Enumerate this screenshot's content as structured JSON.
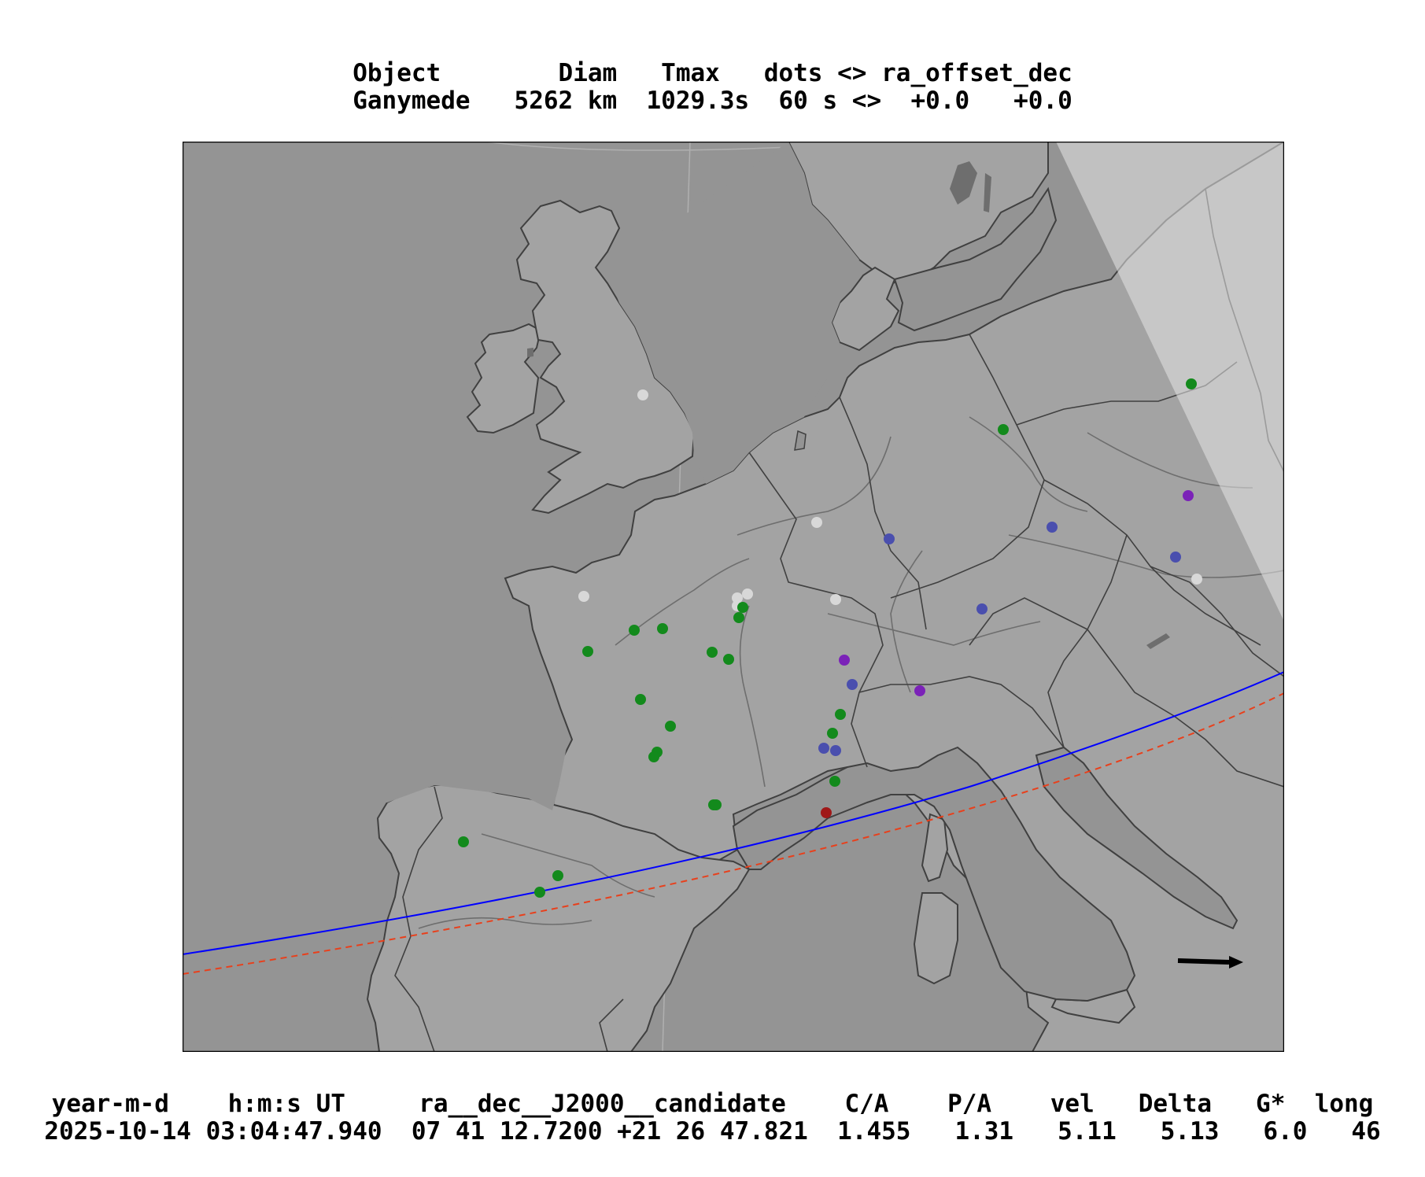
{
  "header": {
    "line1": "Object        Diam   Tmax   dots <> ra_offset_dec",
    "line2": "Ganymede   5262 km  1029.3s  60 s <>  +0.0   +0.0"
  },
  "footer": {
    "line1": "year-m-d    h:m:s UT     ra__dec__J2000__candidate    C/A    P/A    vel   Delta   G*  long",
    "line2": "2025-10-14 03:04:47.940  07 41 12.7200 +21 26 47.821  1.455   1.31   5.11   5.13   6.0   46"
  },
  "colors": {
    "ocean": "#949494",
    "land": "#a3a3a3",
    "daylight": "#cdcdcd",
    "border": "#404040",
    "river": "#6e6e6e",
    "central_path": "#0000ff",
    "limit_path": "#e8401c",
    "observer_green": "#138a1c",
    "observer_blue": "#4a4fae",
    "observer_purple": "#7b22b8",
    "observer_white": "#d8d8d8",
    "observer_red": "#a01818",
    "arrow": "#000000"
  },
  "legend_arrow": "direction-of-motion-arrow"
}
